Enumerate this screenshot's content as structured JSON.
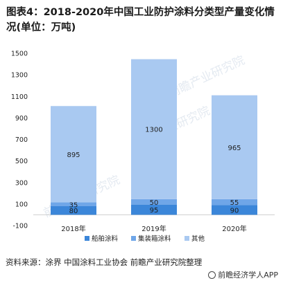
{
  "title": "图表4：2018-2020年中国工业防护涂料分类型产量变化情况(单位：万吨)",
  "source": "资料来源：涂界 中国涂料工业协会 前瞻产业研究院整理",
  "brand": "前瞻经济学人APP",
  "watermark": "前瞻产业研究院",
  "colors": {
    "ship": "#3b86d9",
    "container": "#6fa6e8",
    "other": "#a9c9f1",
    "axis": "#d0d0d0",
    "label": "#1f1f1f"
  },
  "chart_data": {
    "type": "bar",
    "stacked": true,
    "categories": [
      "2018年",
      "2019年",
      "2020年"
    ],
    "series": [
      {
        "name": "船舶涂料",
        "values": [
          80,
          95,
          90
        ]
      },
      {
        "name": "集装箱涂料",
        "values": [
          35,
          50,
          55
        ]
      },
      {
        "name": "其他",
        "values": [
          895,
          1300,
          965
        ]
      }
    ],
    "ylim": [
      -100,
      1500
    ],
    "yticks": [
      -100,
      100,
      300,
      500,
      700,
      900,
      1100,
      1300,
      1500
    ],
    "grid": false,
    "legend": "bottom"
  }
}
